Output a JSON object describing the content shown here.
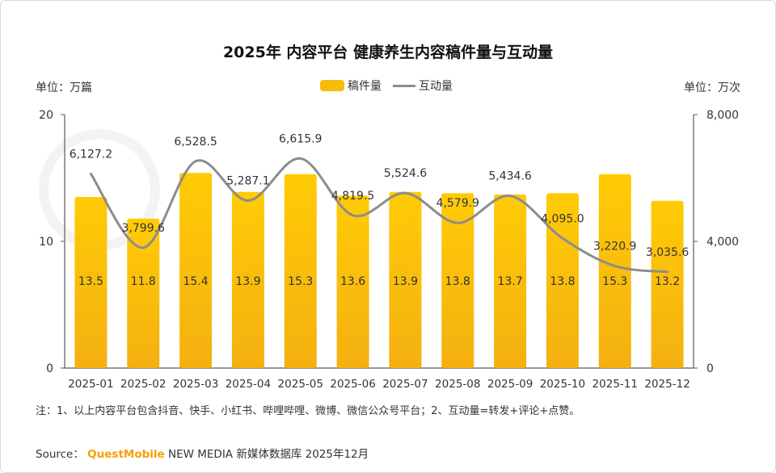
{
  "title": "2025年 内容平台 健康养生内容稿件量与互动量",
  "unit_left": "单位：万篇",
  "unit_right": "单位：万次",
  "legend": {
    "bar_label": "稿件量",
    "line_label": "互动量"
  },
  "note": "注：1、以上内容平台包含抖音、快手、小红书、哔哩哔哩、微博、微信公众号平台；2、互动量=转发+评论+点赞。",
  "source": {
    "prefix": "Source：",
    "brand": "QuestMobile",
    "suffix": "NEW MEDIA 新媒体数据库 2025年12月"
  },
  "colors": {
    "bar_top": "#FFCB05",
    "bar_bottom": "#F4B011",
    "line": "#8C8C8C",
    "brand": "#F5A000"
  },
  "chart_data": {
    "type": "bar",
    "categories": [
      "2025-01",
      "2025-02",
      "2025-03",
      "2025-04",
      "2025-05",
      "2025-06",
      "2025-07",
      "2025-08",
      "2025-09",
      "2025-10",
      "2025-11",
      "2025-12"
    ],
    "series": [
      {
        "name": "稿件量",
        "type": "bar",
        "axis": "left",
        "values": [
          13.5,
          11.8,
          15.4,
          13.9,
          15.3,
          13.6,
          13.9,
          13.8,
          13.7,
          13.8,
          15.3,
          13.2
        ],
        "labels": [
          "13.5",
          "11.8",
          "15.4",
          "13.9",
          "15.3",
          "13.6",
          "13.9",
          "13.8",
          "13.7",
          "13.8",
          "15.3",
          "13.2"
        ]
      },
      {
        "name": "互动量",
        "type": "line",
        "axis": "right",
        "values": [
          6127.2,
          3799.6,
          6528.5,
          5287.1,
          6615.9,
          4819.5,
          5524.6,
          4579.9,
          5434.6,
          4095.0,
          3220.9,
          3035.6
        ],
        "labels": [
          "6,127.2",
          "3,799.6",
          "6,528.5",
          "5,287.1",
          "6,615.9",
          "4,819.5",
          "5,524.6",
          "4,579.9",
          "5,434.6",
          "4,095.0",
          "3,220.9",
          "3,035.6"
        ]
      }
    ],
    "y_left": {
      "lim": [
        0,
        20
      ],
      "ticks": [
        0,
        10,
        20
      ],
      "tick_labels": [
        "0",
        "10",
        "20"
      ]
    },
    "y_right": {
      "lim": [
        0,
        8000
      ],
      "ticks": [
        0,
        4000,
        8000
      ],
      "tick_labels": [
        "0",
        "4,000",
        "8,000"
      ]
    },
    "grid": false,
    "legend_position": "top-center"
  }
}
